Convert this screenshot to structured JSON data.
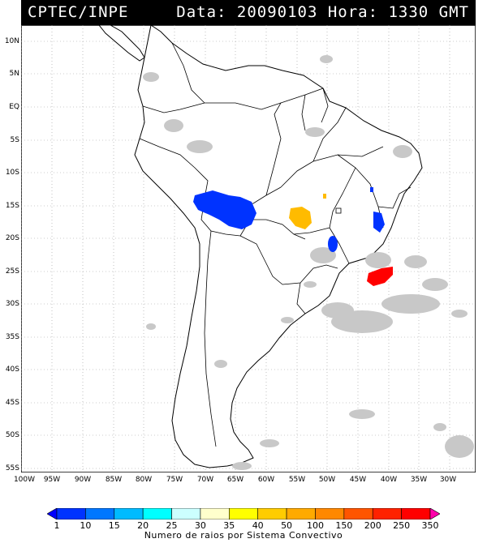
{
  "header": {
    "source": "CPTEC/INPE",
    "datetime": "Data: 20090103 Hora: 1330 GMT"
  },
  "map": {
    "lat_labels": [
      "10N",
      "5N",
      "EQ",
      "5S",
      "10S",
      "15S",
      "20S",
      "25S",
      "30S",
      "35S",
      "40S",
      "45S",
      "50S",
      "55S"
    ],
    "lon_labels": [
      "100W",
      "95W",
      "90W",
      "85W",
      "80W",
      "75W",
      "70W",
      "65W",
      "60W",
      "55W",
      "50W",
      "45W",
      "40W",
      "35W",
      "30W"
    ],
    "background_color": "#ffffff",
    "cloud_color": "#c8c8c8",
    "land_outline_color": "#000000"
  },
  "legend": {
    "title": "Numero de raios por Sistema Convectivo",
    "labels": [
      "1",
      "10",
      "15",
      "20",
      "25",
      "30",
      "35",
      "40",
      "50",
      "100",
      "150",
      "200",
      "250",
      "350"
    ],
    "colors": [
      "#0000ff",
      "#0033ff",
      "#0077ff",
      "#00bbff",
      "#00ffff",
      "#ccffff",
      "#ffffcc",
      "#ffff00",
      "#ffcc00",
      "#ffaa00",
      "#ff8800",
      "#ff5500",
      "#ff2200",
      "#ff0000",
      "#ff00aa"
    ]
  }
}
